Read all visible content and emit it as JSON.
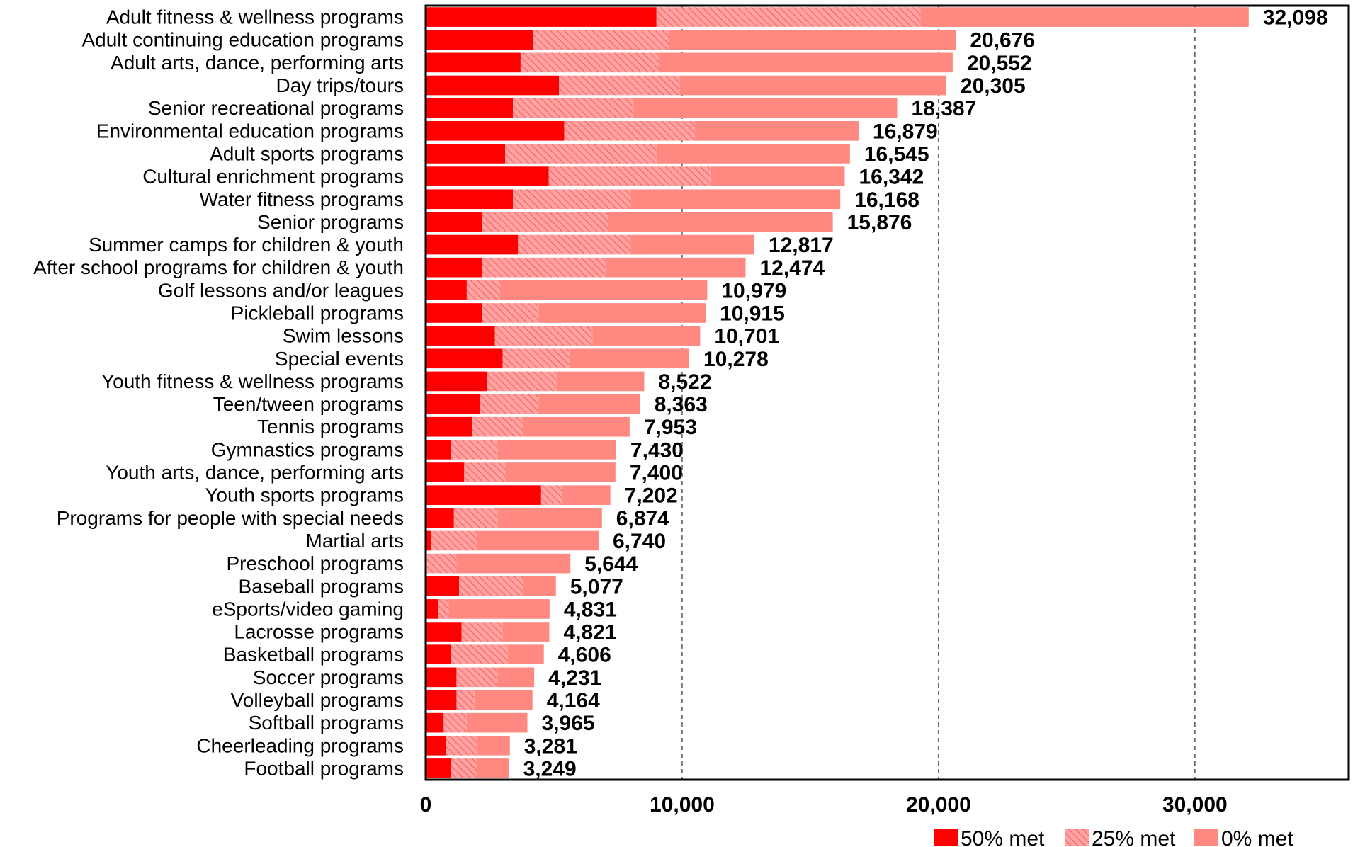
{
  "chart_data": {
    "type": "bar",
    "orientation": "horizontal",
    "stacked": true,
    "title": "",
    "xlabel": "",
    "ylabel": "",
    "xlim": [
      0,
      36000
    ],
    "x_ticks": [
      0,
      10000,
      20000,
      30000
    ],
    "x_tick_labels": [
      "0",
      "10,000",
      "20,000",
      "30,000"
    ],
    "grid": "vertical dashed",
    "legend_position": "bottom-right",
    "colors": {
      "met50": "#ff0000",
      "met25_fill": "#ff9a9a",
      "met25_hatch": "#ff6b6b",
      "met0": "#ff8880"
    },
    "categories": [
      "Adult fitness & wellness programs",
      "Adult continuing education programs",
      "Adult arts, dance, performing arts",
      "Day trips/tours",
      "Senior recreational programs",
      "Environmental education programs",
      "Adult sports programs",
      "Cultural enrichment programs",
      "Water fitness programs",
      "Senior programs",
      "Summer camps for children & youth",
      "After school programs for children & youth",
      "Golf lessons and/or leagues",
      "Pickleball programs",
      "Swim lessons",
      "Special events",
      "Youth fitness & wellness programs",
      "Teen/tween programs",
      "Tennis programs",
      "Gymnastics programs",
      "Youth arts, dance, performing arts",
      "Youth sports programs",
      "Programs for people with special needs",
      "Martial arts",
      "Preschool programs",
      "Baseball programs",
      "eSports/video gaming",
      "Lacrosse programs",
      "Basketball programs",
      "Soccer programs",
      "Volleyball programs",
      "Softball programs",
      "Cheerleading programs",
      "Football programs"
    ],
    "series": [
      {
        "name": "50% met",
        "values": [
          9000,
          4200,
          3700,
          5200,
          3400,
          5400,
          3100,
          4800,
          3400,
          2200,
          3600,
          2200,
          1600,
          2200,
          2700,
          3000,
          2400,
          2100,
          1800,
          1000,
          1500,
          4500,
          1100,
          200,
          0,
          1300,
          500,
          1400,
          1000,
          1200,
          1200,
          700,
          800,
          1000
        ]
      },
      {
        "name": "25% met",
        "values": [
          10300,
          5300,
          5400,
          4700,
          4700,
          5100,
          5900,
          6300,
          4600,
          4900,
          4400,
          4800,
          1300,
          2200,
          3800,
          2600,
          2700,
          2300,
          2000,
          1800,
          1600,
          800,
          1700,
          1800,
          1200,
          2500,
          400,
          1600,
          2200,
          1600,
          700,
          900,
          1200,
          1000
        ]
      },
      {
        "name": "0% met",
        "values": [
          12798,
          11176,
          11452,
          10405,
          10287,
          6379,
          7545,
          5242,
          8168,
          8776,
          4817,
          5474,
          8079,
          6515,
          4201,
          4678,
          3422,
          3963,
          4153,
          4630,
          4300,
          1902,
          4074,
          4740,
          4444,
          1277,
          3931,
          1821,
          1406,
          1431,
          2264,
          2365,
          1281,
          1249
        ]
      }
    ],
    "totals": [
      32098,
      20676,
      20552,
      20305,
      18387,
      16879,
      16545,
      16342,
      16168,
      15876,
      12817,
      12474,
      10979,
      10915,
      10701,
      10278,
      8522,
      8363,
      7953,
      7430,
      7400,
      7202,
      6874,
      6740,
      5644,
      5077,
      4831,
      4821,
      4606,
      4231,
      4164,
      3965,
      3281,
      3249
    ],
    "total_labels": [
      "32,098",
      "20,676",
      "20,552",
      "20,305",
      "18,387",
      "16,879",
      "16,545",
      "16,342",
      "16,168",
      "15,876",
      "12,817",
      "12,474",
      "10,979",
      "10,915",
      "10,701",
      "10,278",
      "8,522",
      "8,363",
      "7,953",
      "7,430",
      "7,400",
      "7,202",
      "6,874",
      "6,740",
      "5,644",
      "5,077",
      "4,831",
      "4,821",
      "4,606",
      "4,231",
      "4,164",
      "3,965",
      "3,281",
      "3,249"
    ],
    "legend": [
      "50% met",
      "25% met",
      "0% met"
    ]
  }
}
